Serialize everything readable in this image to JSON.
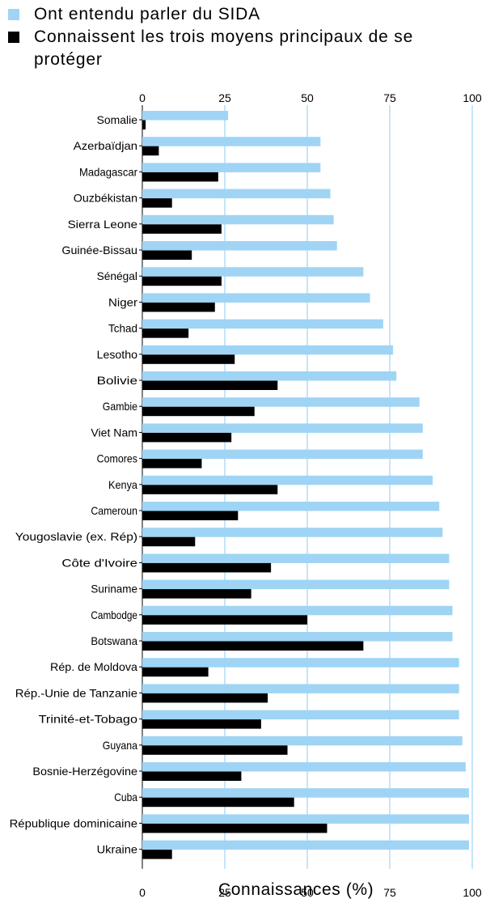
{
  "legend": [
    {
      "label": "Ont entendu parler du SIDA",
      "color": "#9fd4f5"
    },
    {
      "label": "Connaissent les trois moyens principaux de se protéger",
      "color": "#000000"
    }
  ],
  "chart_data": {
    "type": "bar",
    "orientation": "horizontal",
    "xlabel": "Connaissances (%)",
    "xlim": [
      0,
      100
    ],
    "xticks": [
      "0",
      "25",
      "50",
      "75",
      "100"
    ],
    "grid": true,
    "legend_position": "top",
    "categories": [
      "Somalie",
      "Azerbaïdjan",
      "Madagascar",
      "Ouzbékistan",
      "Sierra Leone",
      "Guinée-Bissau",
      "Sénégal",
      "Niger",
      "Tchad",
      "Lesotho",
      "Bolivie",
      "Gambie",
      "Viet Nam",
      "Comores",
      "Kenya",
      "Cameroun",
      "Yougoslavie (ex. Rép)",
      "Côte d'Ivoire",
      "Suriname",
      "Cambodge",
      "Botswana",
      "Rép. de Moldova",
      "Rép.-Unie de Tanzanie",
      "Trinité-et-Tobago",
      "Guyana",
      "Bosnie-Herzégovine",
      "Cuba",
      "République dominicaine",
      "Ukraine"
    ],
    "series": [
      {
        "name": "Ont entendu parler du SIDA",
        "color": "#9fd4f5",
        "values": [
          26,
          54,
          54,
          57,
          58,
          59,
          67,
          69,
          73,
          76,
          77,
          84,
          85,
          85,
          88,
          90,
          91,
          93,
          93,
          94,
          94,
          96,
          96,
          96,
          97,
          98,
          99,
          99,
          99
        ]
      },
      {
        "name": "Connaissent les trois moyens principaux de se protéger",
        "color": "#000000",
        "values": [
          1,
          5,
          23,
          9,
          24,
          15,
          24,
          22,
          14,
          28,
          41,
          34,
          27,
          18,
          41,
          29,
          16,
          39,
          33,
          50,
          67,
          20,
          38,
          36,
          44,
          30,
          46,
          56,
          9
        ]
      }
    ]
  }
}
